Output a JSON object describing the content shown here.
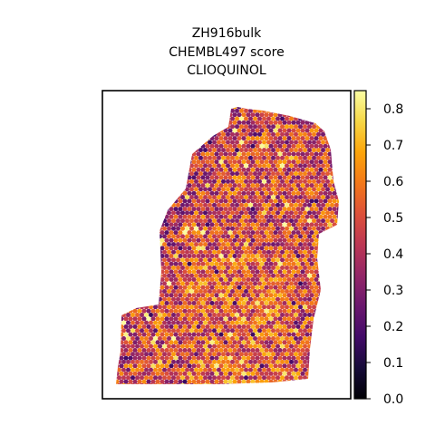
{
  "chart_data": {
    "type": "scatter",
    "title_lines": [
      "ZH916bulk",
      "CHEMBL497 score",
      "CLIOQUINOL"
    ],
    "xlabel": "",
    "ylabel": "",
    "grid": false,
    "axes_ticks_visible": false,
    "colormap": "inferno",
    "colorbar": {
      "range": [
        0.0,
        0.85
      ],
      "ticks": [
        0.0,
        0.1,
        0.2,
        0.3,
        0.4,
        0.5,
        0.6,
        0.7,
        0.8
      ],
      "tick_labels": [
        "0.0",
        "0.1",
        "0.2",
        "0.3",
        "0.4",
        "0.5",
        "0.6",
        "0.7",
        "0.8"
      ]
    },
    "spot_summary": {
      "typical_score": 0.5,
      "low_score_region": "upper-left edge",
      "high_score_region": "lower-center"
    }
  }
}
